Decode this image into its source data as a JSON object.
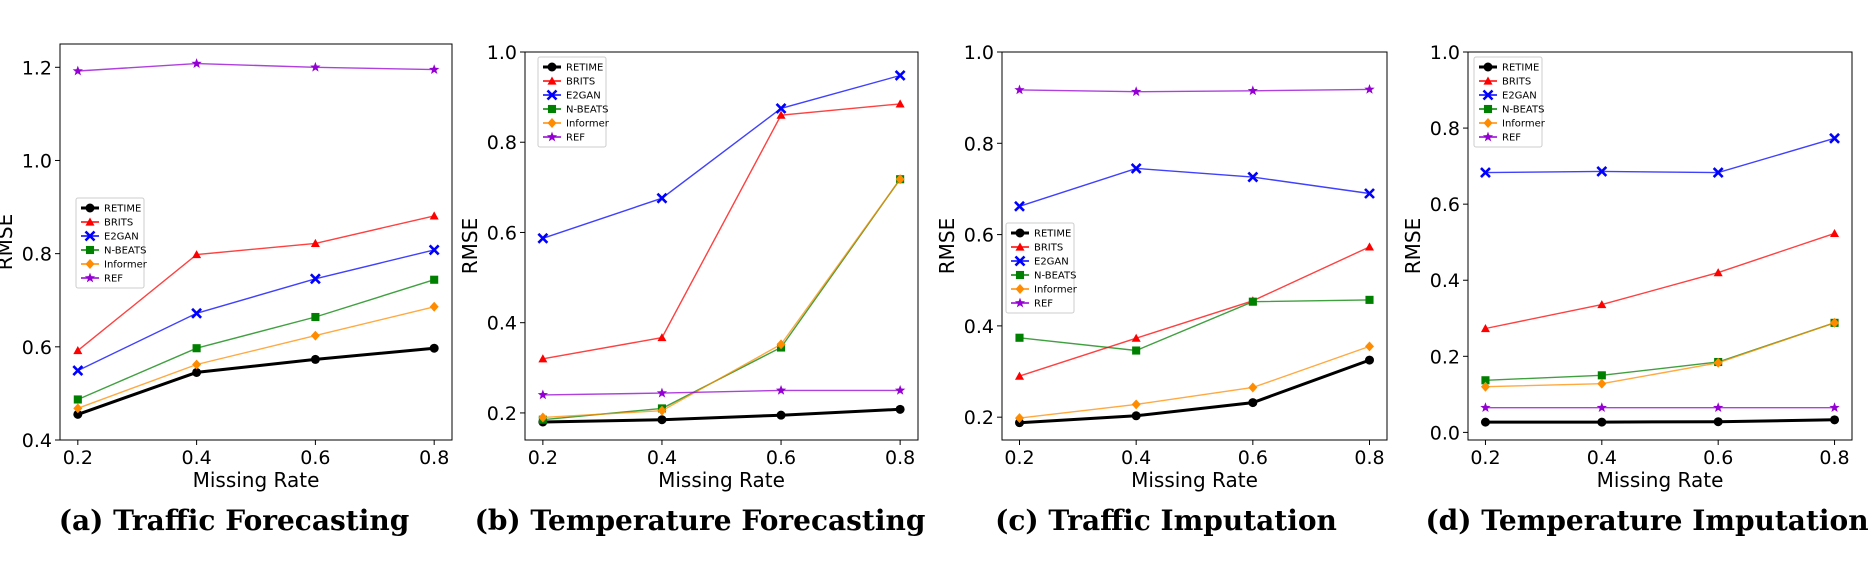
{
  "chart_data": [
    {
      "type": "line",
      "title": "(a) Traffic Forecasting",
      "xlabel": "Missing Rate",
      "ylabel": "RMSE",
      "x": [
        0.2,
        0.4,
        0.6,
        0.8
      ],
      "xticks": [
        "0.2",
        "0.4",
        "0.6",
        "0.8"
      ],
      "ylim": [
        0.4,
        1.25
      ],
      "yticks": [
        "0.4",
        "0.6",
        "0.8",
        "1.0",
        "1.2"
      ],
      "legend": "center-left",
      "series": [
        {
          "name": "RETIME",
          "color": "#000000",
          "marker": "circle",
          "values": [
            0.455,
            0.545,
            0.573,
            0.597
          ]
        },
        {
          "name": "BRITS",
          "color": "#ff0000",
          "marker": "triangle",
          "values": [
            0.592,
            0.798,
            0.822,
            0.881
          ]
        },
        {
          "name": "E2GAN",
          "color": "#0000ff",
          "marker": "x",
          "values": [
            0.549,
            0.672,
            0.746,
            0.808
          ]
        },
        {
          "name": "N-BEATS",
          "color": "#008000",
          "marker": "square",
          "values": [
            0.487,
            0.597,
            0.664,
            0.744
          ]
        },
        {
          "name": "Informer",
          "color": "#ff8c00",
          "marker": "diamond",
          "values": [
            0.468,
            0.562,
            0.624,
            0.686
          ]
        },
        {
          "name": "REF",
          "color": "#9400d3",
          "marker": "star",
          "values": [
            1.192,
            1.208,
            1.2,
            1.195
          ]
        }
      ]
    },
    {
      "type": "line",
      "title": "(b) Temperature Forecasting",
      "xlabel": "Missing Rate",
      "ylabel": "RMSE",
      "x": [
        0.2,
        0.4,
        0.6,
        0.8
      ],
      "xticks": [
        "0.2",
        "0.4",
        "0.6",
        "0.8"
      ],
      "ylim": [
        0.14,
        1.0
      ],
      "yticks": [
        "0.2",
        "0.4",
        "0.6",
        "0.8",
        "1.0"
      ],
      "legend": "top-left",
      "series": [
        {
          "name": "RETIME",
          "color": "#000000",
          "marker": "circle",
          "values": [
            0.18,
            0.185,
            0.195,
            0.208
          ]
        },
        {
          "name": "BRITS",
          "color": "#ff0000",
          "marker": "triangle",
          "values": [
            0.32,
            0.367,
            0.86,
            0.885
          ]
        },
        {
          "name": "E2GAN",
          "color": "#0000ff",
          "marker": "x",
          "values": [
            0.587,
            0.676,
            0.875,
            0.948
          ]
        },
        {
          "name": "N-BEATS",
          "color": "#008000",
          "marker": "square",
          "values": [
            0.185,
            0.21,
            0.345,
            0.718
          ]
        },
        {
          "name": "Informer",
          "color": "#ff8c00",
          "marker": "diamond",
          "values": [
            0.19,
            0.205,
            0.352,
            0.718
          ]
        },
        {
          "name": "REF",
          "color": "#9400d3",
          "marker": "star",
          "values": [
            0.24,
            0.244,
            0.25,
            0.25
          ]
        }
      ]
    },
    {
      "type": "line",
      "title": "(c) Traffic Imputation",
      "xlabel": "Missing Rate",
      "ylabel": "RMSE",
      "x": [
        0.2,
        0.4,
        0.6,
        0.8
      ],
      "xticks": [
        "0.2",
        "0.4",
        "0.6",
        "0.8"
      ],
      "ylim": [
        0.15,
        1.0
      ],
      "yticks": [
        "0.2",
        "0.4",
        "0.6",
        "0.8",
        "1.0"
      ],
      "legend": "center-left",
      "series": [
        {
          "name": "RETIME",
          "color": "#000000",
          "marker": "circle",
          "values": [
            0.188,
            0.203,
            0.232,
            0.325
          ]
        },
        {
          "name": "BRITS",
          "color": "#ff0000",
          "marker": "triangle",
          "values": [
            0.29,
            0.373,
            0.455,
            0.573
          ]
        },
        {
          "name": "E2GAN",
          "color": "#0000ff",
          "marker": "x",
          "values": [
            0.662,
            0.745,
            0.726,
            0.69
          ]
        },
        {
          "name": "N-BEATS",
          "color": "#008000",
          "marker": "square",
          "values": [
            0.374,
            0.346,
            0.453,
            0.457
          ]
        },
        {
          "name": "Informer",
          "color": "#ff8c00",
          "marker": "diamond",
          "values": [
            0.198,
            0.228,
            0.265,
            0.355
          ]
        },
        {
          "name": "REF",
          "color": "#9400d3",
          "marker": "star",
          "values": [
            0.917,
            0.913,
            0.915,
            0.918
          ]
        }
      ]
    },
    {
      "type": "line",
      "title": "(d) Temperature Imputation",
      "xlabel": "Missing Rate",
      "ylabel": "RMSE",
      "x": [
        0.2,
        0.4,
        0.6,
        0.8
      ],
      "xticks": [
        "0.2",
        "0.4",
        "0.6",
        "0.8"
      ],
      "ylim": [
        -0.02,
        1.0
      ],
      "yticks": [
        "0.0",
        "0.2",
        "0.4",
        "0.6",
        "0.8",
        "1.0"
      ],
      "legend": "top-left",
      "series": [
        {
          "name": "RETIME",
          "color": "#000000",
          "marker": "circle",
          "values": [
            0.027,
            0.027,
            0.028,
            0.033
          ]
        },
        {
          "name": "BRITS",
          "color": "#ff0000",
          "marker": "triangle",
          "values": [
            0.273,
            0.336,
            0.42,
            0.523
          ]
        },
        {
          "name": "E2GAN",
          "color": "#0000ff",
          "marker": "x",
          "values": [
            0.683,
            0.686,
            0.683,
            0.773
          ]
        },
        {
          "name": "N-BEATS",
          "color": "#008000",
          "marker": "square",
          "values": [
            0.137,
            0.15,
            0.185,
            0.288
          ]
        },
        {
          "name": "Informer",
          "color": "#ff8c00",
          "marker": "diamond",
          "values": [
            0.12,
            0.128,
            0.183,
            0.288
          ]
        },
        {
          "name": "REF",
          "color": "#9400d3",
          "marker": "star",
          "values": [
            0.065,
            0.065,
            0.065,
            0.065
          ]
        }
      ]
    }
  ]
}
